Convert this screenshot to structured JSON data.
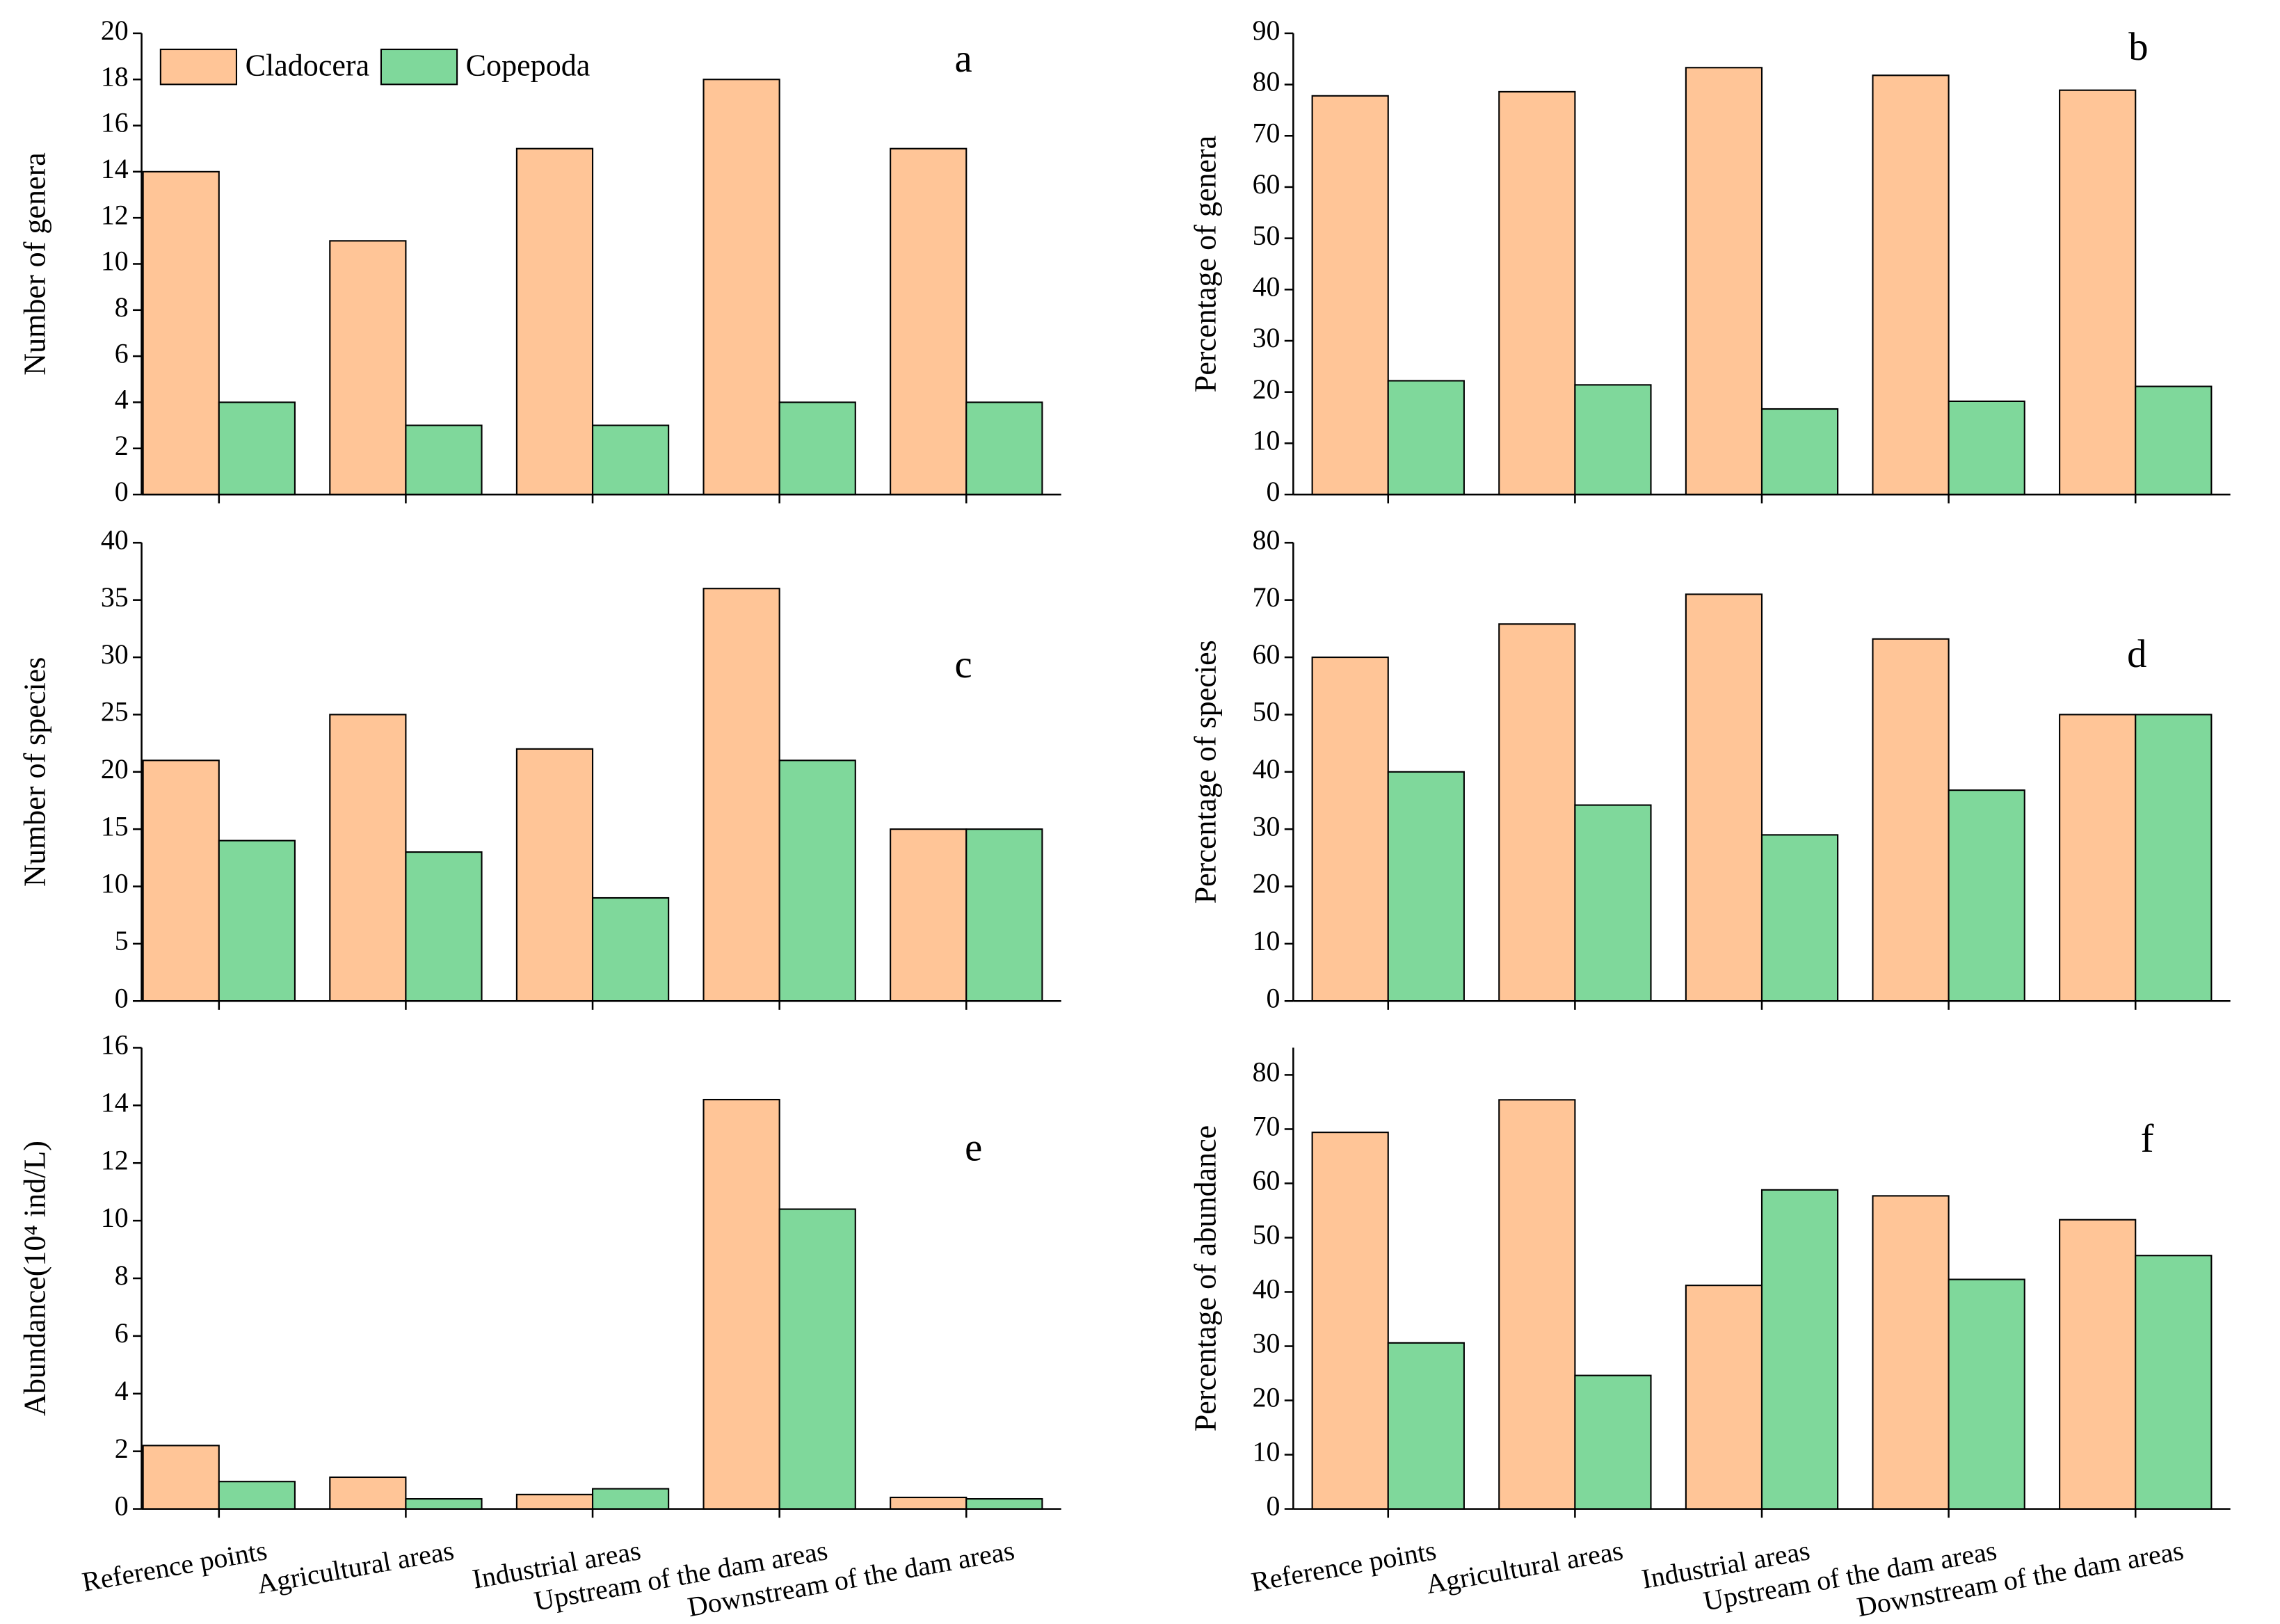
{
  "chart_data": [
    {
      "type": "bar",
      "label": "a",
      "ylabel": "Number of genera",
      "ylim": [
        0,
        20
      ],
      "yticks": [
        0,
        2,
        4,
        6,
        8,
        10,
        12,
        14,
        16,
        18,
        20
      ],
      "series": [
        {
          "name": "Cladocera",
          "color": "#FFC597",
          "values": [
            14,
            11,
            15,
            18,
            15
          ]
        },
        {
          "name": "Copepoda",
          "color": "#7FD89B",
          "values": [
            4,
            3,
            3,
            4,
            4
          ]
        }
      ]
    },
    {
      "type": "bar",
      "label": "b",
      "ylabel": "Percentage of genera",
      "ylim": [
        0,
        90
      ],
      "yticks": [
        0,
        10,
        20,
        30,
        40,
        50,
        60,
        70,
        80,
        90
      ],
      "series": [
        {
          "color": "#FFC597",
          "values": [
            77.8,
            78.6,
            83.3,
            81.8,
            78.9
          ]
        },
        {
          "color": "#7FD89B",
          "values": [
            22.2,
            21.4,
            16.7,
            18.2,
            21.1
          ]
        }
      ]
    },
    {
      "type": "bar",
      "label": "c",
      "ylabel": "Number of species",
      "ylim": [
        0,
        40
      ],
      "yticks": [
        0,
        5,
        10,
        15,
        20,
        25,
        30,
        35,
        40
      ],
      "series": [
        {
          "color": "#FFC597",
          "values": [
            21,
            25,
            22,
            36,
            15
          ]
        },
        {
          "color": "#7FD89B",
          "values": [
            14,
            13,
            9,
            21,
            15
          ]
        }
      ]
    },
    {
      "type": "bar",
      "label": "d",
      "ylabel": "Percentage of species",
      "ylim": [
        0,
        80
      ],
      "yticks": [
        0,
        10,
        20,
        30,
        40,
        50,
        60,
        70,
        80
      ],
      "series": [
        {
          "color": "#FFC597",
          "values": [
            60,
            65.8,
            71,
            63.2,
            50
          ]
        },
        {
          "color": "#7FD89B",
          "values": [
            40,
            34.2,
            29,
            36.8,
            50
          ]
        }
      ]
    },
    {
      "type": "bar",
      "label": "e",
      "ylabel": "Abundance(10⁴ ind/L)",
      "ylim": [
        0,
        16
      ],
      "yticks": [
        0,
        2,
        4,
        6,
        8,
        10,
        12,
        14,
        16
      ],
      "categories": [
        "Reference points",
        "Agricultural areas",
        "Industrial areas",
        "Upstream of the dam areas",
        "Downstream of the dam areas"
      ],
      "series": [
        {
          "color": "#FFC597",
          "values": [
            2.2,
            1.1,
            0.5,
            14.2,
            0.4
          ]
        },
        {
          "color": "#7FD89B",
          "values": [
            0.95,
            0.35,
            0.7,
            10.4,
            0.35
          ]
        }
      ]
    },
    {
      "type": "bar",
      "label": "f",
      "ylabel": "Percentage of abundance",
      "ylim": [
        0,
        85
      ],
      "yticks": [
        0,
        10,
        20,
        30,
        40,
        50,
        60,
        70,
        80
      ],
      "categories": [
        "Reference points",
        "Agricultural areas",
        "Industrial areas",
        "Upstream of the dam areas",
        "Downstream of the dam areas"
      ],
      "series": [
        {
          "color": "#FFC597",
          "values": [
            69.4,
            75.4,
            41.2,
            57.7,
            53.3
          ]
        },
        {
          "color": "#7FD89B",
          "values": [
            30.6,
            24.6,
            58.8,
            42.3,
            46.7
          ]
        }
      ]
    }
  ]
}
